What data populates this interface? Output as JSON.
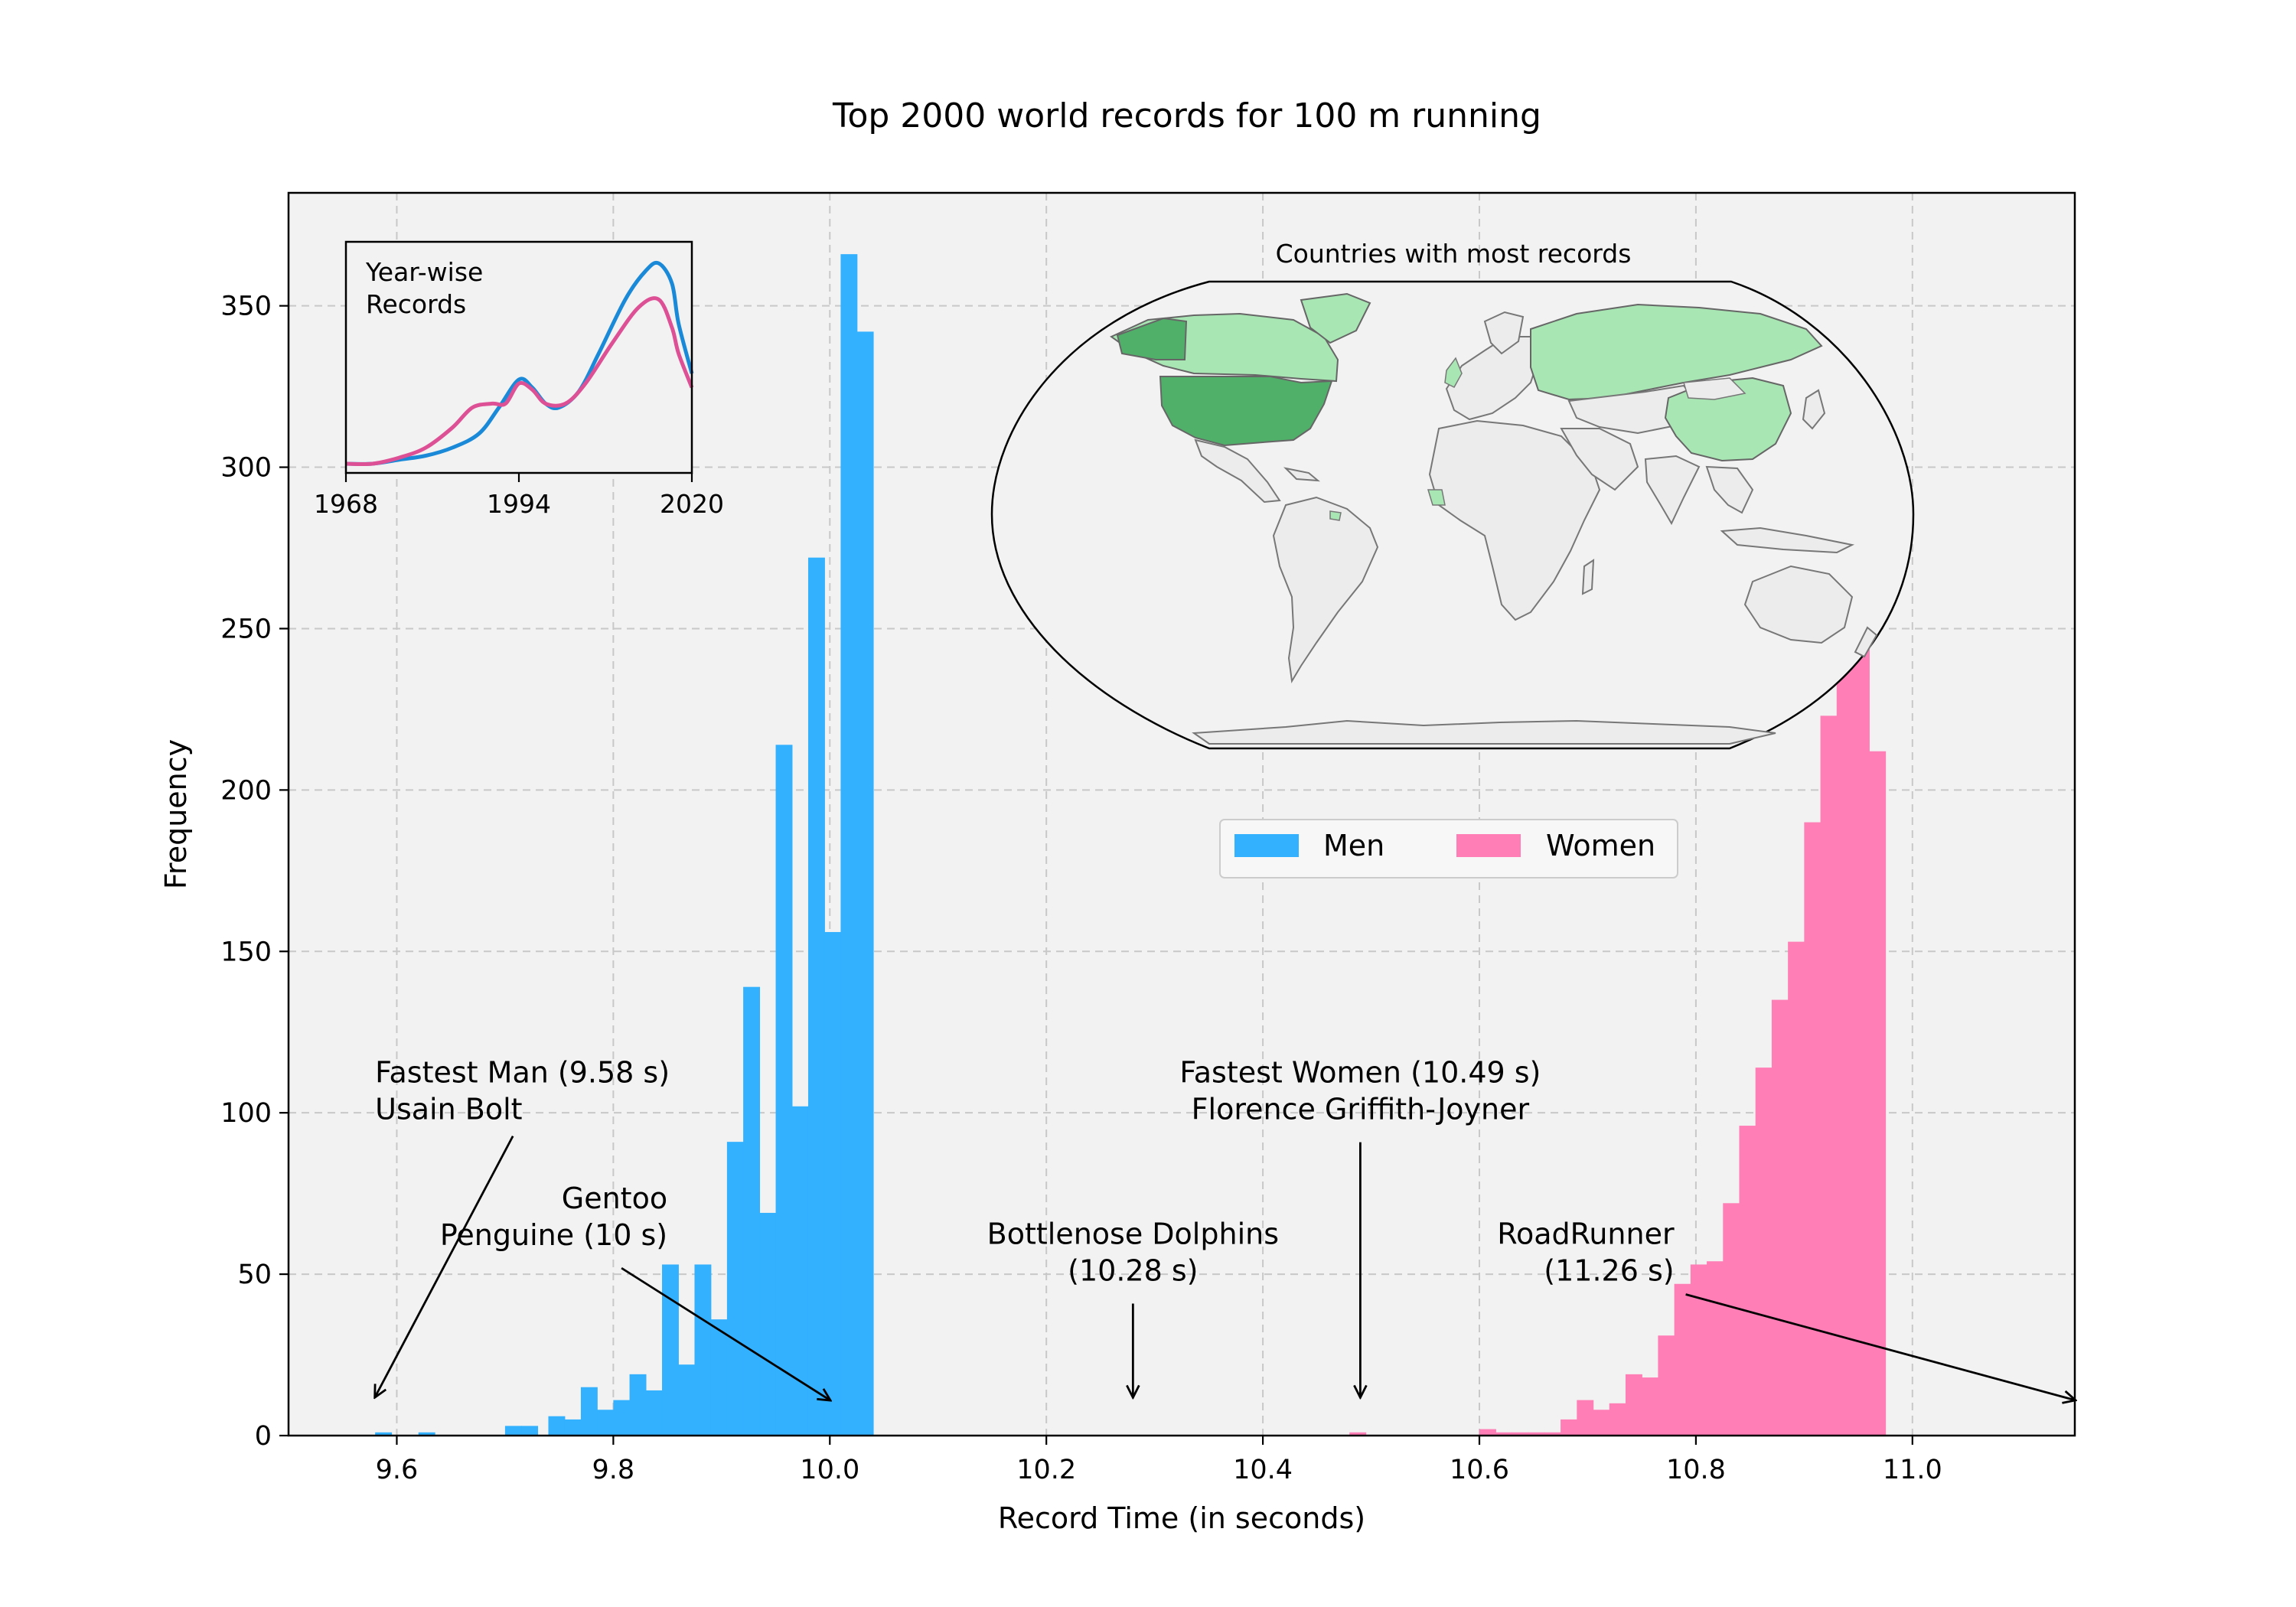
{
  "chart_data": [
    {
      "type": "bar",
      "title": "Top 2000 world records for 100 m running",
      "xlabel": "Record Time (in seconds)",
      "ylabel": "Frequency",
      "xlim": [
        9.5,
        11.15
      ],
      "ylim": [
        0,
        385
      ],
      "xticks": [
        9.6,
        9.8,
        10.0,
        10.2,
        10.4,
        10.6,
        10.8,
        11.0
      ],
      "xtick_labels": [
        "9.6",
        "9.8",
        "10.0",
        "10.2",
        "10.4",
        "10.6",
        "10.8",
        "11.0"
      ],
      "yticks": [
        0,
        50,
        100,
        150,
        200,
        250,
        300,
        350
      ],
      "ytick_labels": [
        "0",
        "50",
        "100",
        "150",
        "200",
        "250",
        "300",
        "350"
      ],
      "grid": true,
      "grid_style": "dashed",
      "legend": {
        "placement": "center-right",
        "ncol": 2
      },
      "bin_width": 0.0155,
      "series": [
        {
          "name": "Men",
          "color": "#33b1ff",
          "bins": [
            {
              "x": 9.58,
              "value": 1
            },
            {
              "x": 9.62,
              "value": 1
            },
            {
              "x": 9.7,
              "value": 3
            },
            {
              "x": 9.715,
              "value": 3
            },
            {
              "x": 9.74,
              "value": 6
            },
            {
              "x": 9.755,
              "value": 5
            },
            {
              "x": 9.77,
              "value": 15
            },
            {
              "x": 9.785,
              "value": 8
            },
            {
              "x": 9.8,
              "value": 11
            },
            {
              "x": 9.815,
              "value": 19
            },
            {
              "x": 9.83,
              "value": 14
            },
            {
              "x": 9.845,
              "value": 53
            },
            {
              "x": 9.86,
              "value": 22
            },
            {
              "x": 9.875,
              "value": 53
            },
            {
              "x": 9.89,
              "value": 36
            },
            {
              "x": 9.905,
              "value": 91
            },
            {
              "x": 9.92,
              "value": 139
            },
            {
              "x": 9.935,
              "value": 69
            },
            {
              "x": 9.95,
              "value": 214
            },
            {
              "x": 9.965,
              "value": 102
            },
            {
              "x": 9.98,
              "value": 272
            },
            {
              "x": 9.995,
              "value": 156
            },
            {
              "x": 10.01,
              "value": 366
            },
            {
              "x": 10.025,
              "value": 342
            }
          ]
        },
        {
          "name": "Women",
          "color": "#ff7eb6",
          "bins": [
            {
              "x": 10.48,
              "value": 1
            },
            {
              "x": 10.6,
              "value": 2
            },
            {
              "x": 10.615,
              "value": 1
            },
            {
              "x": 10.63,
              "value": 1
            },
            {
              "x": 10.645,
              "value": 1
            },
            {
              "x": 10.66,
              "value": 1
            },
            {
              "x": 10.675,
              "value": 5
            },
            {
              "x": 10.69,
              "value": 11
            },
            {
              "x": 10.705,
              "value": 8
            },
            {
              "x": 10.72,
              "value": 10
            },
            {
              "x": 10.735,
              "value": 19
            },
            {
              "x": 10.75,
              "value": 18
            },
            {
              "x": 10.765,
              "value": 31
            },
            {
              "x": 10.78,
              "value": 47
            },
            {
              "x": 10.795,
              "value": 53
            },
            {
              "x": 10.81,
              "value": 54
            },
            {
              "x": 10.825,
              "value": 72
            },
            {
              "x": 10.84,
              "value": 96
            },
            {
              "x": 10.855,
              "value": 114
            },
            {
              "x": 10.87,
              "value": 135
            },
            {
              "x": 10.885,
              "value": 153
            },
            {
              "x": 10.9,
              "value": 190
            },
            {
              "x": 10.915,
              "value": 223
            },
            {
              "x": 10.93,
              "value": 248
            },
            {
              "x": 10.945,
              "value": 296
            },
            {
              "x": 10.96,
              "value": 212
            }
          ]
        }
      ],
      "annotations": [
        {
          "text_lines": [
            "Fastest Man (9.58 s)",
            "Usain Bolt"
          ],
          "xy": [
            9.58,
            12
          ],
          "text_xy": [
            9.58,
            98
          ],
          "align": "left"
        },
        {
          "text_lines": [
            "Gentoo",
            "Penguine (10 s)"
          ],
          "xy": [
            10.0,
            11
          ],
          "text_xy": [
            9.85,
            59
          ],
          "align": "right"
        },
        {
          "text_lines": [
            "Bottlenose Dolphins",
            "(10.28 s)"
          ],
          "xy": [
            10.28,
            12
          ],
          "text_xy": [
            10.28,
            48
          ],
          "align": "center"
        },
        {
          "text_lines": [
            "Fastest Women (10.49 s)",
            "Florence Griffith-Joyner"
          ],
          "xy": [
            10.49,
            12
          ],
          "text_xy": [
            10.49,
            98
          ],
          "align": "center"
        },
        {
          "text_lines": [
            "RoadRunner",
            "(11.26 s)"
          ],
          "xy": [
            11.15,
            11
          ],
          "text_xy": [
            10.78,
            48
          ],
          "align": "right"
        }
      ]
    },
    {
      "type": "line",
      "title": "Year-wise\nRecords",
      "title_lines": [
        "Year-wise",
        "Records"
      ],
      "xlim": [
        1968,
        2020
      ],
      "xticks": [
        1968,
        1994,
        2020
      ],
      "xtick_labels": [
        "1968",
        "1994",
        "2020"
      ],
      "series": [
        {
          "color": "#1a8ad8",
          "x": [
            1968,
            1972,
            1976,
            1980,
            1984,
            1988,
            1991,
            1994,
            1996,
            1998,
            2000,
            2003,
            2006,
            2010,
            2013,
            2015,
            2017,
            2018,
            2020
          ],
          "y": [
            0.0,
            0.0,
            0.02,
            0.04,
            0.08,
            0.15,
            0.28,
            0.42,
            0.38,
            0.3,
            0.28,
            0.36,
            0.55,
            0.82,
            0.96,
            1.0,
            0.9,
            0.7,
            0.45
          ]
        },
        {
          "color": "#dd5096",
          "x": [
            1968,
            1972,
            1976,
            1980,
            1984,
            1987,
            1990,
            1992,
            1994,
            1996,
            1998,
            2001,
            2004,
            2008,
            2012,
            2015,
            2017,
            2018,
            2020
          ],
          "y": [
            0.0,
            0.0,
            0.03,
            0.08,
            0.18,
            0.28,
            0.3,
            0.3,
            0.4,
            0.37,
            0.3,
            0.3,
            0.4,
            0.6,
            0.78,
            0.82,
            0.68,
            0.55,
            0.38
          ]
        }
      ]
    }
  ],
  "map": {
    "title": "Countries with most records",
    "highlight_colors": {
      "top": "#50b06a",
      "high": "#a8e6b4"
    },
    "ocean_color": "#f2f2f2",
    "land_color": "#ececec"
  },
  "colors": {
    "plot_bg": "#f2f2f2",
    "grid": "#c8c8c8"
  }
}
